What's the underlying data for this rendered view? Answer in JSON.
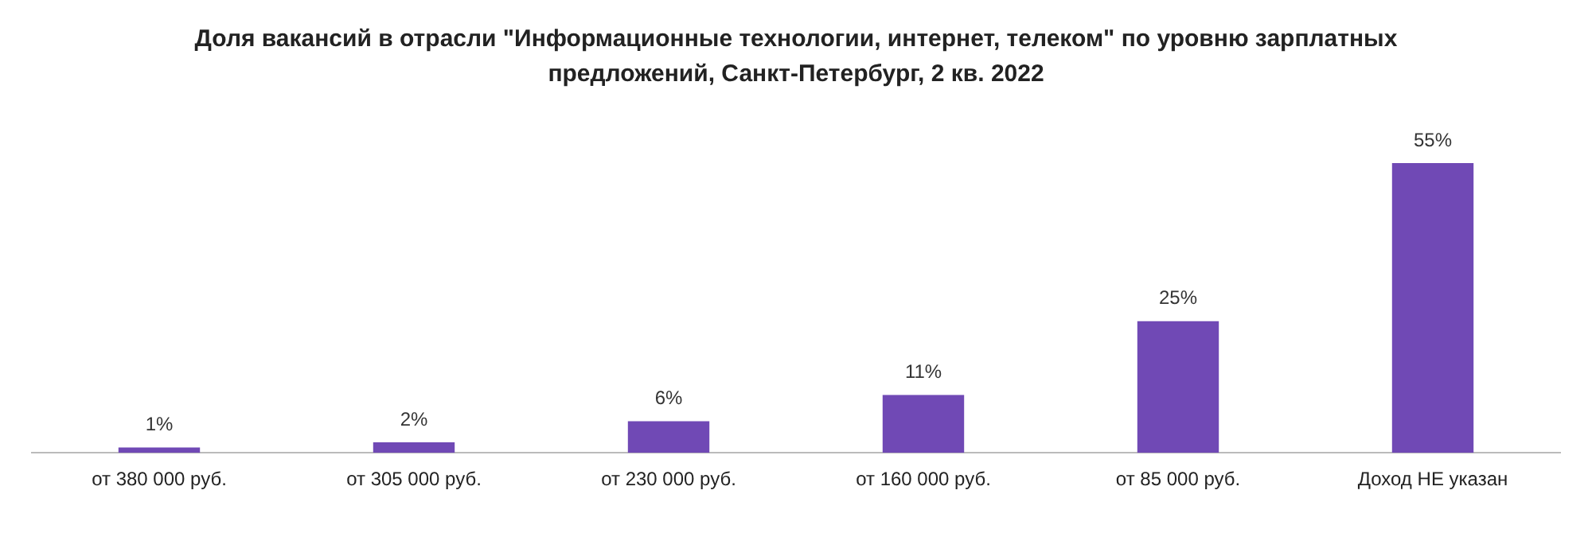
{
  "chart_data": {
    "type": "bar",
    "title": "Доля вакансий в отрасли \"Информационные технологии, интернет, телеком\" по уровню зарплатных предложений, Санкт-Петербург, 2 кв. 2022",
    "categories": [
      "от 380 000 руб.",
      "от 305 000 руб.",
      "от 230 000 руб.",
      "от 160 000 руб.",
      "от 85 000 руб.",
      "Доход НЕ указан"
    ],
    "values": [
      1,
      2,
      6,
      11,
      25,
      55
    ],
    "value_labels": [
      "1%",
      "2%",
      "6%",
      "11%",
      "25%",
      "55%"
    ],
    "color": "#7049b5",
    "grid": false,
    "legend": false,
    "tick_labels": "x"
  }
}
